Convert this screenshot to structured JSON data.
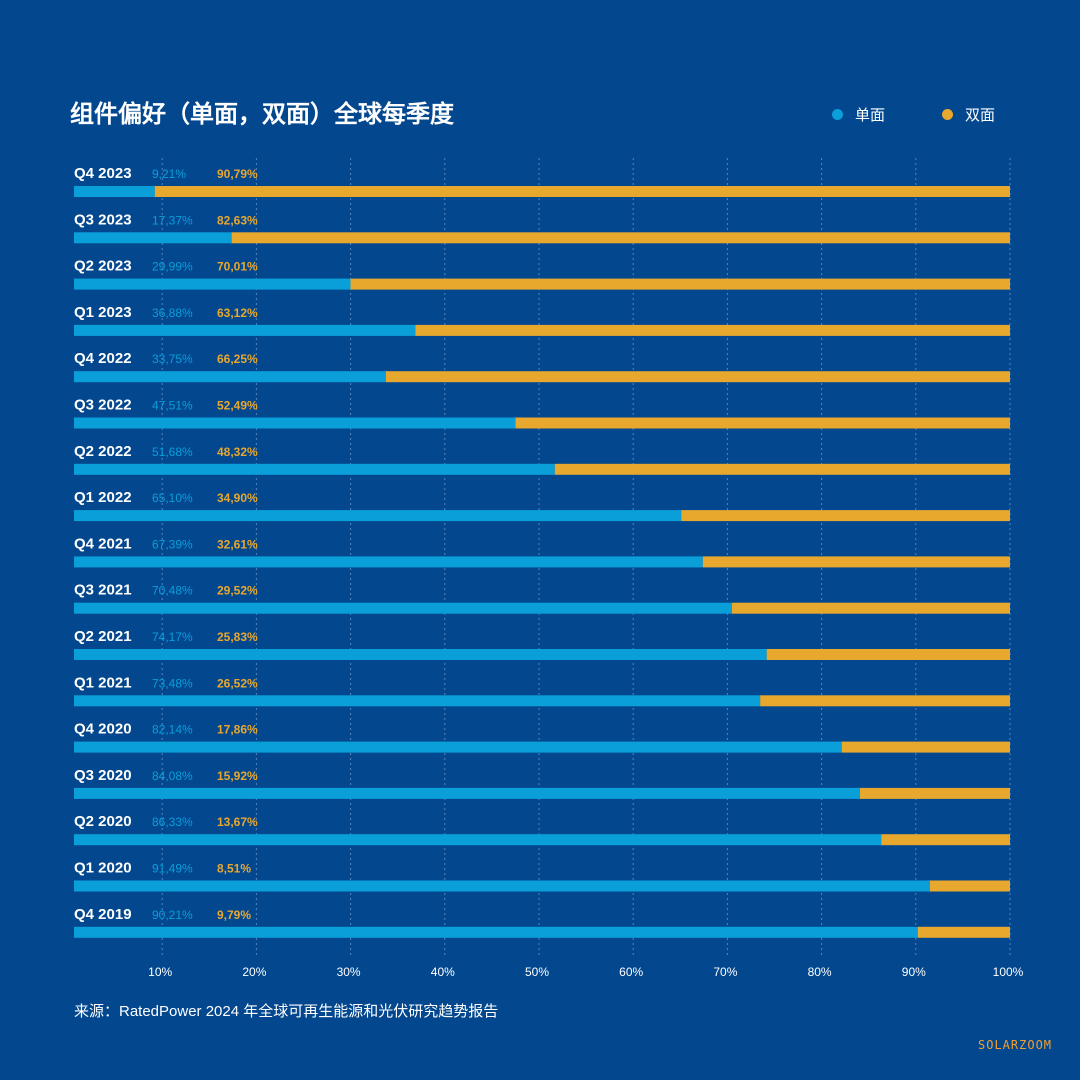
{
  "title": "组件偏好（单面，双面）全球每季度",
  "source": "来源：RatedPower 2024 年全球可再生能源和光伏研究趋势报告",
  "brand": "SOLARZOOM",
  "colors": {
    "background": "#03478f",
    "mono": "#0a9fd9",
    "bifacial": "#e8a82e",
    "grid": "#7c9fcc"
  },
  "chart_data": {
    "type": "bar",
    "orientation": "horizontal",
    "stacked": true,
    "title": "组件偏好（单面，双面）全球每季度",
    "legend_position": "top-right",
    "categories": [
      "Q4 2023",
      "Q3 2023",
      "Q2 2023",
      "Q1 2023",
      "Q4 2022",
      "Q3 2022",
      "Q2 2022",
      "Q1 2022",
      "Q4 2021",
      "Q3 2021",
      "Q2 2021",
      "Q1 2021",
      "Q4 2020",
      "Q3 2020",
      "Q2 2020",
      "Q1 2020",
      "Q4 2019"
    ],
    "series": [
      {
        "name": "单面",
        "values": [
          9.21,
          17.37,
          29.99,
          36.88,
          33.75,
          47.51,
          51.68,
          65.1,
          67.39,
          70.48,
          74.17,
          73.48,
          82.14,
          84.08,
          86.33,
          91.49,
          90.21
        ],
        "labels": [
          "9,21%",
          "17,37%",
          "29,99%",
          "36,88%",
          "33,75%",
          "47,51%",
          "51,68%",
          "65,10%",
          "67,39%",
          "70,48%",
          "74,17%",
          "73,48%",
          "82,14%",
          "84,08%",
          "86,33%",
          "91,49%",
          "90,21%"
        ]
      },
      {
        "name": "双面",
        "values": [
          90.79,
          82.63,
          70.01,
          63.12,
          66.25,
          52.49,
          48.32,
          34.9,
          32.61,
          29.52,
          25.83,
          26.52,
          17.86,
          15.92,
          13.67,
          8.51,
          9.79
        ],
        "labels": [
          "90,79%",
          "82,63%",
          "70,01%",
          "63,12%",
          "66,25%",
          "52,49%",
          "48,32%",
          "34,90%",
          "32,61%",
          "29,52%",
          "25,83%",
          "26,52%",
          "17,86%",
          "15,92%",
          "13,67%",
          "8,51%",
          "9,79%"
        ]
      }
    ],
    "xlim": [
      0,
      100
    ],
    "xticks": [
      "10%",
      "20%",
      "30%",
      "40%",
      "50%",
      "60%",
      "70%",
      "80%",
      "90%",
      "100%"
    ],
    "grid": true
  }
}
